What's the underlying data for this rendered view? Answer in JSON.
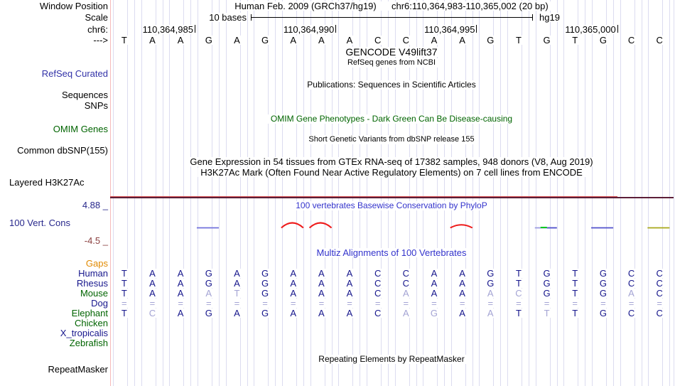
{
  "header": {
    "row_label": "Window Position",
    "assembly_title": "Human Feb. 2009 (GRCh37/hg19)",
    "position_title": "chr6:110,364,983-110,365,002 (20 bp)",
    "scale_label": "Scale",
    "scale_text": "10 bases",
    "assembly_short": "hg19",
    "chrom_label": "chr6:",
    "strand_label": "--->",
    "ticks": [
      {
        "label": "110,364,985",
        "base": 3
      },
      {
        "label": "110,364,990",
        "base": 8
      },
      {
        "label": "110,364,995",
        "base": 13
      },
      {
        "label": "110,365,000",
        "base": 18
      }
    ],
    "sequence": [
      "T",
      "A",
      "A",
      "G",
      "A",
      "G",
      "A",
      "A",
      "A",
      "C",
      "C",
      "A",
      "A",
      "G",
      "T",
      "G",
      "T",
      "G",
      "C",
      "C"
    ]
  },
  "tracks": {
    "gencode_title": "GENCODE V49lift37",
    "refseq_subtitle": "RefSeq genes from NCBI",
    "refseq_label": "RefSeq Curated",
    "publications_title": "Publications: Sequences in Scientific Articles",
    "sequences_label": "Sequences",
    "snps_label": "SNPs",
    "omim_label": "OMIM Genes",
    "omim_title": "OMIM Gene Phenotypes - Dark Green Can Be Disease-causing",
    "dbsnp_label": "Common dbSNP(155)",
    "dbsnp_title": "Short Genetic Variants from dbSNP release 155",
    "gtex_title": "Gene Expression in 54 tissues from GTEx RNA-seq of 17382 samples, 948 donors (V8, Aug 2019)",
    "h3k27ac_title": "H3K27Ac Mark (Often Found Near Active Regulatory Elements) on 7 cell lines from ENCODE",
    "h3k27ac_label": "Layered H3K27Ac",
    "repeat_title": "Repeating Elements by RepeatMasker",
    "repeat_label": "RepeatMasker"
  },
  "conservation": {
    "label": "100 Vert. Cons",
    "title": "100 vertebrates Basewise Conservation by PhyloP",
    "y_max_label": "4.88 _",
    "y_min_label": "-4.5 _",
    "marks": [
      {
        "base": 3,
        "shape": "segment",
        "color": "#7070dc"
      },
      {
        "base": 6,
        "shape": "peak",
        "color": "#ee1c1c"
      },
      {
        "base": 7,
        "shape": "peak",
        "color": "#ee1c1c"
      },
      {
        "base": 12,
        "shape": "peak-shallow",
        "color": "#ee1c1c"
      },
      {
        "base": 15,
        "shape": "segment-green",
        "color": "#9a9ae0"
      },
      {
        "base": 17,
        "shape": "segment",
        "color": "#5050cc"
      },
      {
        "base": 19,
        "shape": "segment",
        "color": "#a8a818"
      }
    ]
  },
  "multiz": {
    "title": "Multiz Alignments of 100 Vertebrates",
    "rows": [
      {
        "name": "Gaps",
        "color": "#e18a00",
        "bases": [],
        "dim": []
      },
      {
        "name": "Human",
        "color": "#16168c",
        "bases": [
          "T",
          "A",
          "A",
          "G",
          "A",
          "G",
          "A",
          "A",
          "A",
          "C",
          "C",
          "A",
          "A",
          "G",
          "T",
          "G",
          "T",
          "G",
          "C",
          "C"
        ],
        "dim": []
      },
      {
        "name": "Rhesus",
        "color": "#16168c",
        "bases": [
          "T",
          "A",
          "A",
          "G",
          "A",
          "G",
          "A",
          "A",
          "A",
          "C",
          "C",
          "A",
          "A",
          "G",
          "T",
          "G",
          "T",
          "G",
          "C",
          "C"
        ],
        "dim": []
      },
      {
        "name": "Mouse",
        "color": "#006400",
        "bases": [
          "T",
          "A",
          "A",
          "A",
          "T",
          "G",
          "A",
          "A",
          "A",
          "C",
          "A",
          "A",
          "A",
          "A",
          "C",
          "G",
          "T",
          "G",
          "A",
          "C"
        ],
        "dim": [
          3,
          4,
          10,
          13,
          14,
          18
        ]
      },
      {
        "name": "Dog",
        "color": "#16168c",
        "bases": [
          "=",
          "=",
          "=",
          "=",
          "=",
          "=",
          "=",
          "=",
          "=",
          "=",
          "=",
          "=",
          "=",
          "=",
          "=",
          "=",
          "=",
          "=",
          "=",
          "="
        ],
        "dim": [
          0,
          1,
          2,
          3,
          4,
          5,
          6,
          7,
          8,
          9,
          10,
          11,
          12,
          13,
          14,
          15,
          16,
          17,
          18,
          19
        ]
      },
      {
        "name": "Elephant",
        "color": "#006400",
        "bases": [
          "T",
          "C",
          "A",
          "G",
          "A",
          "G",
          "A",
          "A",
          "A",
          "C",
          "A",
          "G",
          "A",
          "A",
          "T",
          "T",
          "T",
          "G",
          "C",
          "C"
        ],
        "dim": [
          1,
          10,
          11,
          13,
          15
        ]
      },
      {
        "name": "Chicken",
        "color": "#006400",
        "bases": [],
        "dim": []
      },
      {
        "name": "X_tropicalis",
        "color": "#16168c",
        "bases": [],
        "dim": []
      },
      {
        "name": "Zebrafish",
        "color": "#006400",
        "bases": [],
        "dim": []
      }
    ]
  },
  "colors": {
    "letter_dark": "#16168c",
    "letter_dim": "#a4a4d4",
    "gridline": "#dcdcf0",
    "track_edge_pink": "#f6baba",
    "refseq_label_blue": "#3232a8",
    "omim_green": "#006400",
    "title_blue": "#3333cc",
    "axis_max_blue": "#28288c",
    "axis_min_maroon": "#8b4040",
    "h3k27ac_red": "#d85050",
    "h3k27ac_dark": "#5c1f38",
    "gaps_orange": "#e18a00"
  }
}
